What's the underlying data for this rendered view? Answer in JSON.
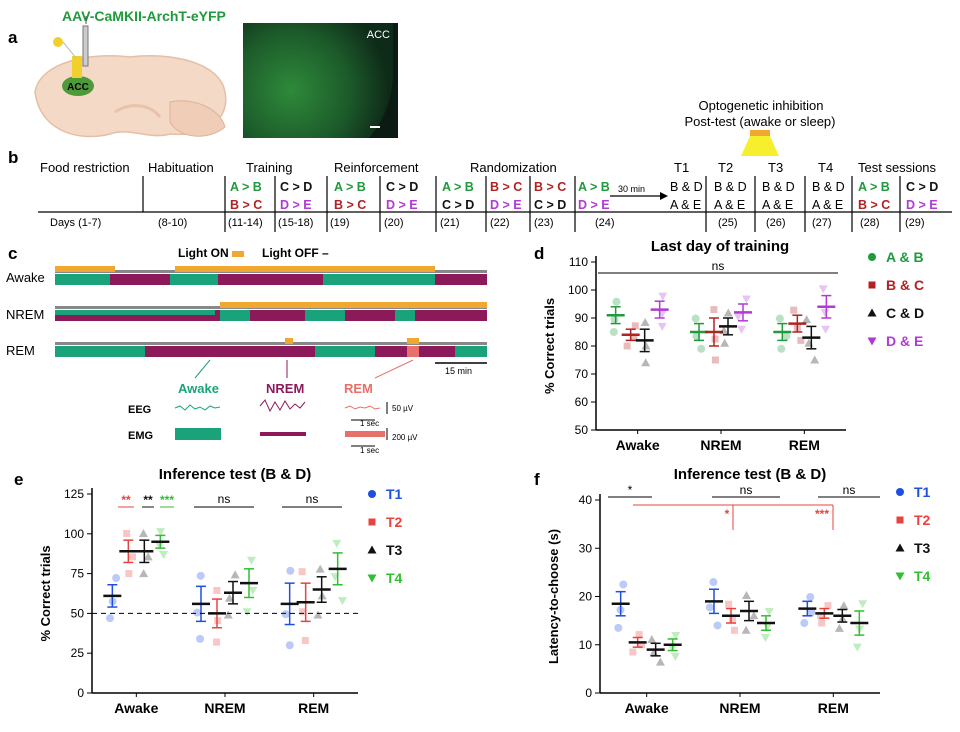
{
  "panel_a": {
    "label": "a",
    "virus": "AAV-CaMKII-ArchT-eYFP",
    "region": "ACC",
    "histology_label": "ACC"
  },
  "panel_b": {
    "label": "b",
    "stages": [
      "Food restriction",
      "Habituation",
      "Training",
      "Reinforcement",
      "Randomization",
      "Test sessions"
    ],
    "tests": [
      "T1",
      "T2",
      "T3",
      "T4"
    ],
    "opto_line1": "Optogenetic inhibition",
    "opto_line2": "Post-test (awake or sleep)",
    "delay": "30 min",
    "days": [
      "Days (1-7)",
      "(8-10)",
      "(11-14)",
      "(15-18)",
      "(19)",
      "(20)",
      "(21)",
      "(22)",
      "(23)",
      "(24)",
      "(25)",
      "(26)",
      "(27)",
      "(28)",
      "(29)"
    ],
    "pairs": {
      "ab": "A > B",
      "bc": "B > C",
      "cd": "C > D",
      "de": "D > E",
      "bd": "B & D",
      "ae": "A & E"
    }
  },
  "panel_c": {
    "label": "c",
    "light_on": "Light ON",
    "light_off": "Light OFF",
    "rows": [
      "Awake",
      "NREM",
      "REM"
    ],
    "states": [
      "Awake",
      "NREM",
      "REM"
    ],
    "eeg": "EEG",
    "emg": "EMG",
    "scale_time": "15 min",
    "eeg_scale": "50 µV",
    "emg_scale": "200 µV",
    "sec1": "1 sec",
    "sec2": "1 sec"
  },
  "panel_d": {
    "label": "d"
  },
  "panel_e": {
    "label": "e"
  },
  "panel_f": {
    "label": "f"
  },
  "colors": {
    "green": "#1f9a3c",
    "red": "#b22222",
    "black": "#111111",
    "purple": "#b13ad6",
    "blue": "#1f4fe0",
    "red2": "#e8433f",
    "green2": "#2fbf2f",
    "teal": "#1aa37a",
    "maroon": "#8c1a5b",
    "salmon": "#e8706a",
    "orange": "#f0a833"
  },
  "chart_data": [
    {
      "id": "d",
      "type": "scatter",
      "title": "Last day of training",
      "ylabel": "% Correct trials",
      "ylim": [
        50,
        110
      ],
      "yticks": [
        50,
        60,
        70,
        80,
        90,
        100,
        110
      ],
      "categories": [
        "Awake",
        "NREM",
        "REM"
      ],
      "significance": "ns",
      "series": [
        {
          "name": "A & B",
          "means": [
            91,
            85,
            85
          ],
          "sem": [
            3,
            3,
            3
          ]
        },
        {
          "name": "B & C",
          "means": [
            84,
            85,
            88
          ],
          "sem": [
            2,
            5,
            3
          ]
        },
        {
          "name": "C & D",
          "means": [
            82,
            87,
            83
          ],
          "sem": [
            4,
            3,
            4
          ]
        },
        {
          "name": "D & E",
          "means": [
            93,
            92,
            94
          ],
          "sem": [
            3,
            3,
            4
          ]
        }
      ]
    },
    {
      "id": "e",
      "type": "scatter",
      "title": "Inference test (B & D)",
      "ylabel": "% Correct trials",
      "ylim": [
        0,
        125
      ],
      "yticks": [
        0,
        25,
        50,
        75,
        100,
        125
      ],
      "chance": 50,
      "categories": [
        "Awake",
        "NREM",
        "REM"
      ],
      "sig_awake": [
        "**",
        "**",
        "***"
      ],
      "sig_nrem": "ns",
      "sig_rem": "ns",
      "series": [
        {
          "name": "T1",
          "means": [
            61,
            56,
            56
          ],
          "sem": [
            7,
            11,
            13
          ]
        },
        {
          "name": "T2",
          "means": [
            89,
            50,
            57
          ],
          "sem": [
            7,
            9,
            12
          ]
        },
        {
          "name": "T3",
          "means": [
            89,
            63,
            65
          ],
          "sem": [
            7,
            7,
            8
          ]
        },
        {
          "name": "T4",
          "means": [
            95,
            69,
            78
          ],
          "sem": [
            4,
            9,
            10
          ]
        }
      ]
    },
    {
      "id": "f",
      "type": "scatter",
      "title": "Inference test (B & D)",
      "ylabel": "Latency-to-choose (s)",
      "ylim": [
        0,
        40
      ],
      "yticks": [
        0,
        10,
        20,
        30,
        40
      ],
      "categories": [
        "Awake",
        "NREM",
        "REM"
      ],
      "sig_top": [
        "*",
        "ns",
        "ns"
      ],
      "sig_red": [
        "*",
        "***"
      ],
      "series": [
        {
          "name": "T1",
          "means": [
            18.5,
            19,
            17.5
          ],
          "sem": [
            2.5,
            2.5,
            1.5
          ]
        },
        {
          "name": "T2",
          "means": [
            10.5,
            16,
            16.5
          ],
          "sem": [
            1,
            1.5,
            1
          ]
        },
        {
          "name": "T3",
          "means": [
            9,
            17,
            16
          ],
          "sem": [
            1.3,
            2,
            1.3
          ]
        },
        {
          "name": "T4",
          "means": [
            10,
            14.5,
            14.5
          ],
          "sem": [
            1.2,
            1.5,
            2.5
          ]
        }
      ]
    }
  ]
}
